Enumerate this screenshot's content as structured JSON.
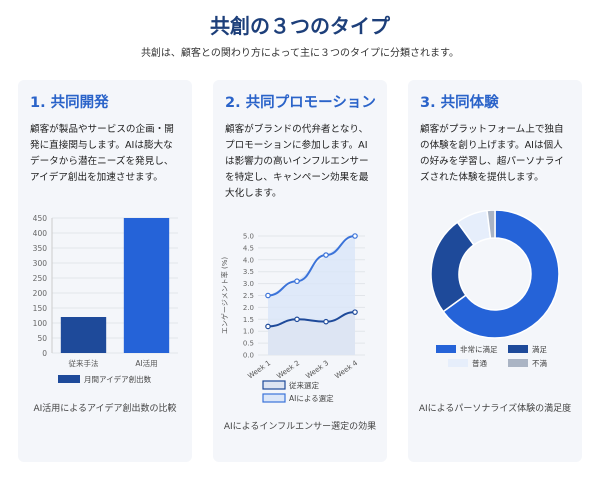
{
  "header": {
    "title": "共創の３つのタイプ",
    "subtitle": "共創は、顧客との関わり方によって主に３つのタイプに分類されます。"
  },
  "cards": [
    {
      "title": "1. 共同開発",
      "description": "顧客が製品やサービスの企画・開発に直接関与します。AIは膨大なデータから潜在ニーズを発見し、アイデア創出を加速させます。",
      "caption": "AI活用によるアイデア創出数の比較"
    },
    {
      "title": "2. 共同プロモーション",
      "description": "顧客がブランドの代弁者となり、プロモーションに参加します。AIは影響力の高いインフルエンサーを特定し、キャンペーン効果を最大化します。",
      "caption": "AIによるインフルエンサー選定の効果"
    },
    {
      "title": "3. 共同体験",
      "description": "顧客がプラットフォーム上で独自の体験を創り上げます。AIは個人の好みを学習し、超パーソナライズされた体験を提供します。",
      "caption": "AIによるパーソナライズ体験の満足度"
    }
  ],
  "chart_data": [
    {
      "type": "bar",
      "categories": [
        "従来手法",
        "AI活用"
      ],
      "series": [
        {
          "name": "月間アイデア創出数",
          "values": [
            120,
            450
          ]
        }
      ],
      "ylim": [
        0,
        450
      ],
      "yticks": [
        0,
        50,
        100,
        150,
        200,
        250,
        300,
        350,
        400,
        450
      ],
      "colors": [
        "#1e4a9a",
        "#2563d8"
      ],
      "legend": "bottom"
    },
    {
      "type": "line",
      "categories": [
        "Week 1",
        "Week 2",
        "Week 3",
        "Week 4"
      ],
      "ylabel": "エンゲージメント率 (%)",
      "ylim": [
        0,
        5
      ],
      "yticks": [
        0,
        0.5,
        1,
        1.5,
        2,
        2.5,
        3,
        3.5,
        4,
        4.5,
        5
      ],
      "series": [
        {
          "name": "従来選定",
          "values": [
            1.2,
            1.5,
            1.4,
            1.8
          ],
          "color": "#1e4a9a",
          "fill": "#dde4f2"
        },
        {
          "name": "AIによる選定",
          "values": [
            2.5,
            3.1,
            4.2,
            5.0
          ],
          "color": "#3b73d9",
          "fill": "#dbe6f8"
        }
      ],
      "legend": "bottom"
    },
    {
      "type": "pie",
      "categories": [
        "非常に満足",
        "満足",
        "普通",
        "不満"
      ],
      "values": [
        65,
        25,
        8,
        2
      ],
      "colors": [
        "#2563d8",
        "#1e4a9a",
        "#e6eefb",
        "#aab4c4"
      ],
      "legend": "bottom"
    }
  ]
}
